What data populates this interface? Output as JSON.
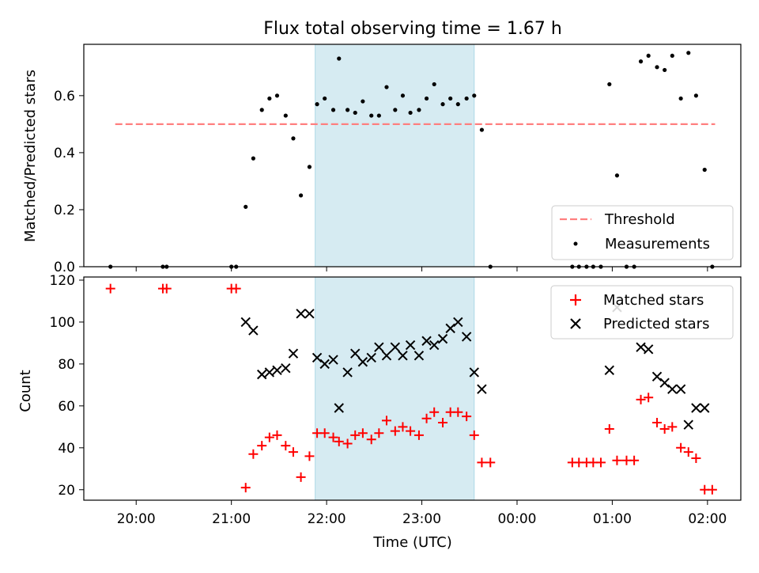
{
  "figure": {
    "title": "Flux total observing time = 1.67 h",
    "x_label": "Time (UTC)",
    "x_tick_labels": [
      "20:00",
      "21:00",
      "22:00",
      "23:00",
      "00:00",
      "01:00",
      "02:00"
    ],
    "highlight_color": "#add8e6"
  },
  "chart_data": [
    {
      "type": "scatter",
      "panel": "top",
      "xlabel": "Time (UTC)",
      "ylabel": "Matched/Predicted stars",
      "x_unit": "hours UTC (24+ = after midnight)",
      "xlim": [
        19.45,
        26.35
      ],
      "ylim": [
        0.0,
        0.78
      ],
      "y_ticks": [
        0.0,
        0.2,
        0.4,
        0.6
      ],
      "y_tick_labels": [
        "0.0",
        "0.2",
        "0.4",
        "0.6"
      ],
      "highlight_span": [
        21.88,
        23.55
      ],
      "threshold": {
        "name": "Threshold",
        "value": 0.5,
        "x_range": [
          19.78,
          26.08
        ],
        "color": "#ff7f7f",
        "style": "dashed"
      },
      "series": [
        {
          "name": "Measurements",
          "color": "#000000",
          "marker": "dot",
          "points": [
            [
              19.73,
              0.0
            ],
            [
              20.28,
              0.0
            ],
            [
              20.32,
              0.0
            ],
            [
              21.0,
              0.0
            ],
            [
              21.05,
              0.0
            ],
            [
              21.15,
              0.21
            ],
            [
              21.23,
              0.38
            ],
            [
              21.32,
              0.55
            ],
            [
              21.4,
              0.59
            ],
            [
              21.48,
              0.6
            ],
            [
              21.57,
              0.53
            ],
            [
              21.65,
              0.45
            ],
            [
              21.73,
              0.25
            ],
            [
              21.82,
              0.35
            ],
            [
              21.9,
              0.57
            ],
            [
              21.98,
              0.59
            ],
            [
              22.07,
              0.55
            ],
            [
              22.13,
              0.73
            ],
            [
              22.22,
              0.55
            ],
            [
              22.3,
              0.54
            ],
            [
              22.38,
              0.58
            ],
            [
              22.47,
              0.53
            ],
            [
              22.55,
              0.53
            ],
            [
              22.63,
              0.63
            ],
            [
              22.72,
              0.55
            ],
            [
              22.8,
              0.6
            ],
            [
              22.88,
              0.54
            ],
            [
              22.97,
              0.55
            ],
            [
              23.05,
              0.59
            ],
            [
              23.13,
              0.64
            ],
            [
              23.22,
              0.57
            ],
            [
              23.3,
              0.59
            ],
            [
              23.38,
              0.57
            ],
            [
              23.47,
              0.59
            ],
            [
              23.55,
              0.6
            ],
            [
              23.63,
              0.48
            ],
            [
              23.72,
              0.0
            ],
            [
              24.58,
              0.0
            ],
            [
              24.65,
              0.0
            ],
            [
              24.73,
              0.0
            ],
            [
              24.8,
              0.0
            ],
            [
              24.88,
              0.0
            ],
            [
              24.97,
              0.64
            ],
            [
              25.05,
              0.32
            ],
            [
              25.15,
              0.0
            ],
            [
              25.23,
              0.0
            ],
            [
              25.3,
              0.72
            ],
            [
              25.38,
              0.74
            ],
            [
              25.47,
              0.7
            ],
            [
              25.55,
              0.69
            ],
            [
              25.63,
              0.74
            ],
            [
              25.72,
              0.59
            ],
            [
              25.8,
              0.75
            ],
            [
              25.88,
              0.6
            ],
            [
              25.97,
              0.34
            ],
            [
              26.05,
              0.0
            ]
          ]
        }
      ]
    },
    {
      "type": "scatter",
      "panel": "bottom",
      "xlabel": "Time (UTC)",
      "ylabel": "Count",
      "xlim": [
        19.45,
        26.35
      ],
      "ylim": [
        15.0,
        121.5
      ],
      "y_ticks": [
        20,
        40,
        60,
        80,
        100,
        120
      ],
      "y_tick_labels": [
        "20",
        "40",
        "60",
        "80",
        "100",
        "120"
      ],
      "highlight_span": [
        21.88,
        23.55
      ],
      "series": [
        {
          "name": "Matched stars",
          "color": "#ff0000",
          "marker": "plus",
          "points": [
            [
              19.73,
              116
            ],
            [
              20.28,
              116
            ],
            [
              20.32,
              116
            ],
            [
              21.0,
              116
            ],
            [
              21.05,
              116
            ],
            [
              21.15,
              21
            ],
            [
              21.23,
              37
            ],
            [
              21.32,
              41
            ],
            [
              21.4,
              45
            ],
            [
              21.48,
              46
            ],
            [
              21.57,
              41
            ],
            [
              21.65,
              38
            ],
            [
              21.73,
              26
            ],
            [
              21.82,
              36
            ],
            [
              21.9,
              47
            ],
            [
              21.98,
              47
            ],
            [
              22.07,
              45
            ],
            [
              22.13,
              43
            ],
            [
              22.22,
              42
            ],
            [
              22.3,
              46
            ],
            [
              22.38,
              47
            ],
            [
              22.47,
              44
            ],
            [
              22.55,
              47
            ],
            [
              22.63,
              53
            ],
            [
              22.72,
              48
            ],
            [
              22.8,
              50
            ],
            [
              22.88,
              48
            ],
            [
              22.97,
              46
            ],
            [
              23.05,
              54
            ],
            [
              23.13,
              57
            ],
            [
              23.22,
              52
            ],
            [
              23.3,
              57
            ],
            [
              23.38,
              57
            ],
            [
              23.47,
              55
            ],
            [
              23.55,
              46
            ],
            [
              23.63,
              33
            ],
            [
              23.72,
              33
            ],
            [
              24.58,
              33
            ],
            [
              24.65,
              33
            ],
            [
              24.73,
              33
            ],
            [
              24.8,
              33
            ],
            [
              24.88,
              33
            ],
            [
              24.97,
              49
            ],
            [
              25.05,
              34
            ],
            [
              25.15,
              34
            ],
            [
              25.23,
              34
            ],
            [
              25.3,
              63
            ],
            [
              25.38,
              64
            ],
            [
              25.47,
              52
            ],
            [
              25.55,
              49
            ],
            [
              25.63,
              50
            ],
            [
              25.72,
              40
            ],
            [
              25.8,
              38
            ],
            [
              25.88,
              35
            ],
            [
              25.97,
              20
            ],
            [
              26.05,
              20
            ]
          ]
        },
        {
          "name": "Predicted stars",
          "color": "#000000",
          "marker": "x",
          "points": [
            [
              21.15,
              100
            ],
            [
              21.23,
              96
            ],
            [
              21.32,
              75
            ],
            [
              21.4,
              76
            ],
            [
              21.48,
              77
            ],
            [
              21.57,
              78
            ],
            [
              21.65,
              85
            ],
            [
              21.73,
              104
            ],
            [
              21.82,
              104
            ],
            [
              21.9,
              83
            ],
            [
              21.98,
              80
            ],
            [
              22.07,
              82
            ],
            [
              22.13,
              59
            ],
            [
              22.22,
              76
            ],
            [
              22.3,
              85
            ],
            [
              22.38,
              81
            ],
            [
              22.47,
              83
            ],
            [
              22.55,
              88
            ],
            [
              22.63,
              84
            ],
            [
              22.72,
              88
            ],
            [
              22.8,
              84
            ],
            [
              22.88,
              89
            ],
            [
              22.97,
              84
            ],
            [
              23.05,
              91
            ],
            [
              23.13,
              89
            ],
            [
              23.22,
              92
            ],
            [
              23.3,
              97
            ],
            [
              23.38,
              100
            ],
            [
              23.47,
              93
            ],
            [
              23.55,
              76
            ],
            [
              23.63,
              68
            ],
            [
              24.97,
              77
            ],
            [
              25.05,
              107
            ],
            [
              25.3,
              88
            ],
            [
              25.38,
              87
            ],
            [
              25.47,
              74
            ],
            [
              25.55,
              71
            ],
            [
              25.63,
              68
            ],
            [
              25.72,
              68
            ],
            [
              25.8,
              51
            ],
            [
              25.88,
              59
            ],
            [
              25.97,
              59
            ]
          ]
        }
      ]
    }
  ]
}
